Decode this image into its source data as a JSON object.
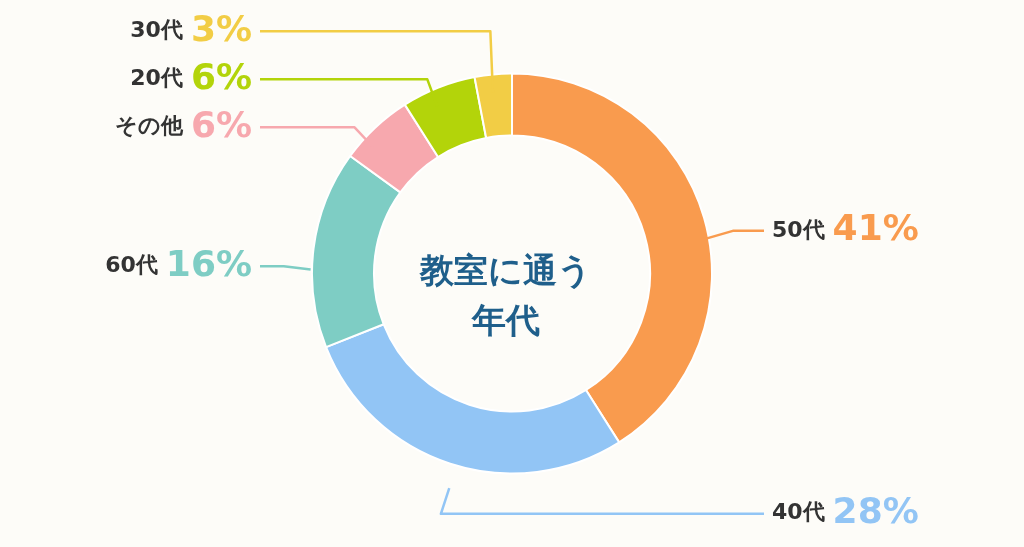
{
  "chart_data": {
    "type": "donut",
    "title": "教室に通う年代",
    "categories": [
      "50代",
      "40代",
      "60代",
      "その他",
      "20代",
      "30代"
    ],
    "values": [
      41,
      28,
      16,
      6,
      6,
      3
    ],
    "value_labels": [
      "41%",
      "28%",
      "16%",
      "6%",
      "6%",
      "3%"
    ],
    "colors": [
      "#f99b4e",
      "#92c5f5",
      "#7ecdc4",
      "#f7a8ae",
      "#b3d40a",
      "#f2cd45"
    ],
    "legend": false
  }
}
